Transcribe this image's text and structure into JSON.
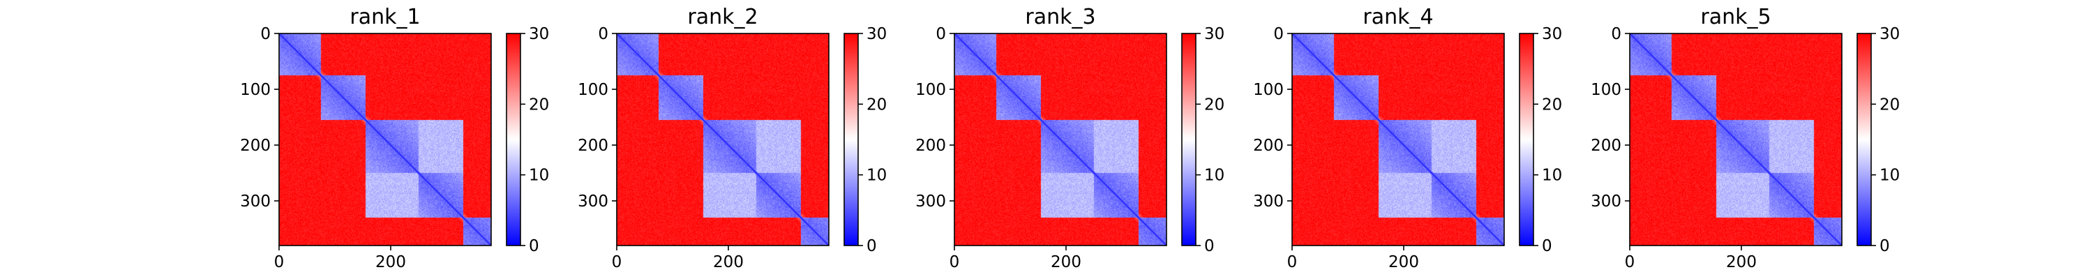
{
  "chart_data": [
    {
      "type": "heatmap",
      "title": "rank_1",
      "matrix_size": 380,
      "xlim": [
        0,
        380
      ],
      "ylim": [
        380,
        0
      ],
      "xticks": [
        0,
        200
      ],
      "yticks": [
        0,
        100,
        200,
        300
      ],
      "xlabel": "",
      "ylabel": "",
      "colorbar": {
        "min": 0,
        "max": 30,
        "ticks": [
          0,
          10,
          20,
          30
        ]
      },
      "colormap": [
        "#0000ff",
        "#ffffff",
        "#ff0000"
      ],
      "vmin": 0,
      "vmax": 30,
      "domains": [
        [
          0,
          75
        ],
        [
          75,
          155
        ],
        [
          155,
          330
        ],
        [
          330,
          380
        ]
      ],
      "intra_domain_distance": 6,
      "inter_domain_distance": 29,
      "sub_domains": [
        [
          155,
          250
        ],
        [
          250,
          330
        ]
      ],
      "sub_domain_distance": 11
    },
    {
      "type": "heatmap",
      "title": "rank_2",
      "matrix_size": 380,
      "xlim": [
        0,
        380
      ],
      "ylim": [
        380,
        0
      ],
      "xticks": [
        0,
        200
      ],
      "yticks": [
        0,
        100,
        200,
        300
      ],
      "xlabel": "",
      "ylabel": "",
      "colorbar": {
        "min": 0,
        "max": 30,
        "ticks": [
          0,
          10,
          20,
          30
        ]
      },
      "colormap": [
        "#0000ff",
        "#ffffff",
        "#ff0000"
      ],
      "vmin": 0,
      "vmax": 30,
      "domains": [
        [
          0,
          75
        ],
        [
          75,
          155
        ],
        [
          155,
          330
        ],
        [
          330,
          380
        ]
      ],
      "intra_domain_distance": 6,
      "inter_domain_distance": 29,
      "sub_domains": [
        [
          155,
          250
        ],
        [
          250,
          330
        ]
      ],
      "sub_domain_distance": 11
    },
    {
      "type": "heatmap",
      "title": "rank_3",
      "matrix_size": 380,
      "xlim": [
        0,
        380
      ],
      "ylim": [
        380,
        0
      ],
      "xticks": [
        0,
        200
      ],
      "yticks": [
        0,
        100,
        200,
        300
      ],
      "xlabel": "",
      "ylabel": "",
      "colorbar": {
        "min": 0,
        "max": 30,
        "ticks": [
          0,
          10,
          20,
          30
        ]
      },
      "colormap": [
        "#0000ff",
        "#ffffff",
        "#ff0000"
      ],
      "vmin": 0,
      "vmax": 30,
      "domains": [
        [
          0,
          75
        ],
        [
          75,
          155
        ],
        [
          155,
          330
        ],
        [
          330,
          380
        ]
      ],
      "intra_domain_distance": 6,
      "inter_domain_distance": 29,
      "sub_domains": [
        [
          155,
          250
        ],
        [
          250,
          330
        ]
      ],
      "sub_domain_distance": 11
    },
    {
      "type": "heatmap",
      "title": "rank_4",
      "matrix_size": 380,
      "xlim": [
        0,
        380
      ],
      "ylim": [
        380,
        0
      ],
      "xticks": [
        0,
        200
      ],
      "yticks": [
        0,
        100,
        200,
        300
      ],
      "xlabel": "",
      "ylabel": "",
      "colorbar": {
        "min": 0,
        "max": 30,
        "ticks": [
          0,
          10,
          20,
          30
        ]
      },
      "colormap": [
        "#0000ff",
        "#ffffff",
        "#ff0000"
      ],
      "vmin": 0,
      "vmax": 30,
      "domains": [
        [
          0,
          75
        ],
        [
          75,
          155
        ],
        [
          155,
          330
        ],
        [
          330,
          380
        ]
      ],
      "intra_domain_distance": 6,
      "inter_domain_distance": 29,
      "sub_domains": [
        [
          155,
          250
        ],
        [
          250,
          330
        ]
      ],
      "sub_domain_distance": 11
    },
    {
      "type": "heatmap",
      "title": "rank_5",
      "matrix_size": 380,
      "xlim": [
        0,
        380
      ],
      "ylim": [
        380,
        0
      ],
      "xticks": [
        0,
        200
      ],
      "yticks": [
        0,
        100,
        200,
        300
      ],
      "xlabel": "",
      "ylabel": "",
      "colorbar": {
        "min": 0,
        "max": 30,
        "ticks": [
          0,
          10,
          20,
          30
        ]
      },
      "colormap": [
        "#0000ff",
        "#ffffff",
        "#ff0000"
      ],
      "vmin": 0,
      "vmax": 30,
      "domains": [
        [
          0,
          75
        ],
        [
          75,
          155
        ],
        [
          155,
          330
        ],
        [
          330,
          380
        ]
      ],
      "intra_domain_distance": 6,
      "inter_domain_distance": 29,
      "sub_domains": [
        [
          155,
          250
        ],
        [
          250,
          330
        ]
      ],
      "sub_domain_distance": 11
    }
  ]
}
